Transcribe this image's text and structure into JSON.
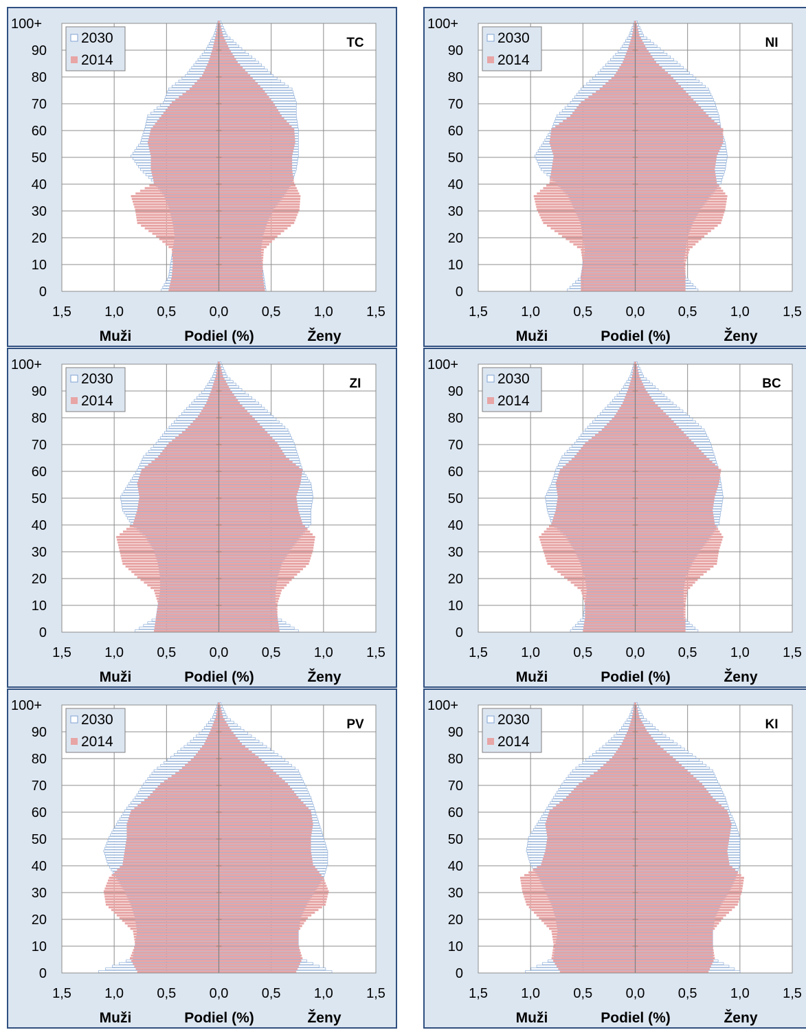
{
  "shared": {
    "y_ticks": [
      "0",
      "10",
      "20",
      "30",
      "40",
      "50",
      "60",
      "70",
      "80",
      "90",
      "100+"
    ],
    "x_ticks": [
      "1,5",
      "1,0",
      "0,5",
      "0,0",
      "0,5",
      "1,0",
      "1,5"
    ],
    "men_label": "Muži",
    "axis_label": "Podiel (%)",
    "women_label": "Ženy",
    "legend": [
      "2030",
      "2014"
    ],
    "colors": {
      "s2030_stroke": "#7fa3d3",
      "s2030_fill": "#ffffff",
      "s2014_fill": "#e8a5a5",
      "panel_bg": "#dce6f1",
      "plot_bg": "#ffffff",
      "frame": "#2f4f7f",
      "grid": "#8c8c8c"
    }
  },
  "chart_data": [
    {
      "type": "bar",
      "region": "TC",
      "orientation": "horizontal",
      "x_unit": "%",
      "xlim": [
        -1.5,
        1.5
      ],
      "ylim": [
        0,
        100
      ],
      "ages": [
        0,
        5,
        10,
        15,
        20,
        25,
        30,
        35,
        40,
        45,
        50,
        55,
        60,
        65,
        70,
        75,
        80,
        85,
        90,
        95,
        100
      ],
      "series": [
        {
          "name": "2030",
          "men": [
            0.55,
            0.48,
            0.46,
            0.44,
            0.42,
            0.44,
            0.47,
            0.52,
            0.62,
            0.75,
            0.84,
            0.75,
            0.71,
            0.68,
            0.53,
            0.48,
            0.32,
            0.22,
            0.12,
            0.05,
            0.01
          ],
          "women": [
            0.45,
            0.43,
            0.41,
            0.4,
            0.42,
            0.46,
            0.52,
            0.62,
            0.7,
            0.74,
            0.76,
            0.76,
            0.76,
            0.74,
            0.74,
            0.7,
            0.52,
            0.38,
            0.22,
            0.08,
            0.02
          ]
        },
        {
          "name": "2014",
          "men": [
            0.48,
            0.45,
            0.44,
            0.45,
            0.6,
            0.78,
            0.8,
            0.84,
            0.62,
            0.65,
            0.65,
            0.68,
            0.65,
            0.55,
            0.45,
            0.28,
            0.16,
            0.1,
            0.06,
            0.03,
            0.01
          ],
          "women": [
            0.44,
            0.42,
            0.42,
            0.43,
            0.56,
            0.72,
            0.77,
            0.78,
            0.72,
            0.7,
            0.7,
            0.73,
            0.72,
            0.6,
            0.52,
            0.42,
            0.3,
            0.18,
            0.1,
            0.04,
            0.01
          ]
        }
      ]
    },
    {
      "type": "bar",
      "region": "NI",
      "orientation": "horizontal",
      "x_unit": "%",
      "xlim": [
        -1.5,
        1.5
      ],
      "ylim": [
        0,
        100
      ],
      "ages": [
        0,
        5,
        10,
        15,
        20,
        25,
        30,
        35,
        40,
        45,
        50,
        55,
        60,
        65,
        70,
        75,
        80,
        85,
        90,
        95,
        100
      ],
      "series": [
        {
          "name": "2030",
          "men": [
            0.65,
            0.52,
            0.5,
            0.48,
            0.5,
            0.52,
            0.58,
            0.64,
            0.76,
            0.9,
            0.96,
            0.88,
            0.8,
            0.75,
            0.62,
            0.52,
            0.38,
            0.26,
            0.14,
            0.06,
            0.01
          ],
          "women": [
            0.6,
            0.48,
            0.46,
            0.48,
            0.5,
            0.55,
            0.62,
            0.72,
            0.82,
            0.86,
            0.88,
            0.86,
            0.82,
            0.8,
            0.76,
            0.7,
            0.55,
            0.4,
            0.24,
            0.08,
            0.02
          ]
        },
        {
          "name": "2014",
          "men": [
            0.52,
            0.52,
            0.5,
            0.52,
            0.7,
            0.88,
            0.94,
            0.97,
            0.82,
            0.8,
            0.78,
            0.82,
            0.8,
            0.62,
            0.52,
            0.34,
            0.2,
            0.12,
            0.07,
            0.03,
            0.01
          ],
          "women": [
            0.48,
            0.48,
            0.48,
            0.52,
            0.66,
            0.82,
            0.86,
            0.88,
            0.78,
            0.76,
            0.78,
            0.84,
            0.84,
            0.7,
            0.58,
            0.46,
            0.34,
            0.2,
            0.11,
            0.04,
            0.01
          ]
        }
      ]
    },
    {
      "type": "bar",
      "region": "ZI",
      "orientation": "horizontal",
      "x_unit": "%",
      "xlim": [
        -1.5,
        1.5
      ],
      "ylim": [
        0,
        100
      ],
      "ages": [
        0,
        5,
        10,
        15,
        20,
        25,
        30,
        35,
        40,
        45,
        50,
        55,
        60,
        65,
        70,
        75,
        80,
        85,
        90,
        95,
        100
      ],
      "series": [
        {
          "name": "2030",
          "men": [
            0.8,
            0.6,
            0.58,
            0.56,
            0.56,
            0.58,
            0.62,
            0.7,
            0.84,
            0.92,
            0.94,
            0.86,
            0.78,
            0.72,
            0.6,
            0.5,
            0.38,
            0.26,
            0.14,
            0.06,
            0.01
          ],
          "women": [
            0.76,
            0.56,
            0.54,
            0.54,
            0.56,
            0.6,
            0.68,
            0.78,
            0.88,
            0.88,
            0.9,
            0.88,
            0.8,
            0.76,
            0.72,
            0.66,
            0.52,
            0.38,
            0.22,
            0.08,
            0.02
          ]
        },
        {
          "name": "2014",
          "men": [
            0.62,
            0.6,
            0.58,
            0.62,
            0.78,
            0.92,
            0.95,
            0.98,
            0.82,
            0.78,
            0.76,
            0.78,
            0.74,
            0.58,
            0.48,
            0.32,
            0.2,
            0.12,
            0.07,
            0.03,
            0.01
          ],
          "women": [
            0.58,
            0.56,
            0.56,
            0.6,
            0.72,
            0.86,
            0.9,
            0.92,
            0.8,
            0.76,
            0.74,
            0.78,
            0.8,
            0.64,
            0.56,
            0.44,
            0.32,
            0.2,
            0.11,
            0.04,
            0.01
          ]
        }
      ]
    },
    {
      "type": "bar",
      "region": "BC",
      "orientation": "horizontal",
      "x_unit": "%",
      "xlim": [
        -1.5,
        1.5
      ],
      "ylim": [
        0,
        100
      ],
      "ages": [
        0,
        5,
        10,
        15,
        20,
        25,
        30,
        35,
        40,
        45,
        50,
        55,
        60,
        65,
        70,
        75,
        80,
        85,
        90,
        95,
        100
      ],
      "series": [
        {
          "name": "2030",
          "men": [
            0.62,
            0.5,
            0.48,
            0.46,
            0.48,
            0.52,
            0.58,
            0.66,
            0.8,
            0.84,
            0.86,
            0.8,
            0.76,
            0.7,
            0.58,
            0.48,
            0.36,
            0.24,
            0.13,
            0.05,
            0.01
          ],
          "women": [
            0.6,
            0.46,
            0.46,
            0.46,
            0.48,
            0.54,
            0.62,
            0.72,
            0.8,
            0.82,
            0.84,
            0.82,
            0.8,
            0.76,
            0.72,
            0.66,
            0.52,
            0.36,
            0.22,
            0.08,
            0.02
          ]
        },
        {
          "name": "2014",
          "men": [
            0.5,
            0.48,
            0.48,
            0.52,
            0.68,
            0.84,
            0.88,
            0.92,
            0.8,
            0.76,
            0.74,
            0.76,
            0.72,
            0.58,
            0.48,
            0.32,
            0.2,
            0.12,
            0.07,
            0.03,
            0.01
          ],
          "women": [
            0.48,
            0.48,
            0.48,
            0.5,
            0.62,
            0.78,
            0.8,
            0.84,
            0.76,
            0.74,
            0.76,
            0.8,
            0.82,
            0.68,
            0.56,
            0.44,
            0.32,
            0.19,
            0.1,
            0.04,
            0.01
          ]
        }
      ]
    },
    {
      "type": "bar",
      "region": "PV",
      "orientation": "horizontal",
      "x_unit": "%",
      "xlim": [
        -1.5,
        1.5
      ],
      "ylim": [
        0,
        100
      ],
      "ages": [
        0,
        5,
        10,
        15,
        20,
        25,
        30,
        35,
        40,
        45,
        50,
        55,
        60,
        65,
        70,
        75,
        80,
        85,
        90,
        95,
        100
      ],
      "series": [
        {
          "name": "2030",
          "men": [
            1.15,
            0.82,
            0.8,
            0.78,
            0.8,
            0.84,
            0.9,
            0.98,
            1.06,
            1.1,
            1.05,
            0.98,
            0.9,
            0.8,
            0.72,
            0.62,
            0.46,
            0.3,
            0.16,
            0.06,
            0.01
          ],
          "women": [
            1.08,
            0.78,
            0.76,
            0.76,
            0.78,
            0.84,
            0.92,
            1.0,
            1.04,
            1.04,
            1.0,
            0.96,
            0.92,
            0.88,
            0.82,
            0.76,
            0.6,
            0.42,
            0.24,
            0.08,
            0.02
          ]
        },
        {
          "name": "2014",
          "men": [
            0.78,
            0.85,
            0.8,
            0.82,
            0.95,
            1.08,
            1.1,
            1.05,
            0.92,
            0.9,
            0.88,
            0.88,
            0.84,
            0.68,
            0.56,
            0.38,
            0.24,
            0.14,
            0.08,
            0.03,
            0.01
          ],
          "women": [
            0.74,
            0.8,
            0.76,
            0.76,
            0.85,
            1.02,
            1.05,
            1.0,
            0.9,
            0.88,
            0.88,
            0.9,
            0.88,
            0.76,
            0.66,
            0.52,
            0.38,
            0.22,
            0.12,
            0.04,
            0.01
          ]
        }
      ]
    },
    {
      "type": "bar",
      "region": "KI",
      "orientation": "horizontal",
      "x_unit": "%",
      "xlim": [
        -1.5,
        1.5
      ],
      "ylim": [
        0,
        100
      ],
      "ages": [
        0,
        5,
        10,
        15,
        20,
        25,
        30,
        35,
        40,
        45,
        50,
        55,
        60,
        65,
        70,
        75,
        80,
        85,
        90,
        95,
        100
      ],
      "series": [
        {
          "name": "2030",
          "men": [
            1.05,
            0.78,
            0.76,
            0.74,
            0.76,
            0.8,
            0.86,
            0.92,
            1.0,
            1.04,
            1.02,
            0.94,
            0.86,
            0.78,
            0.7,
            0.6,
            0.44,
            0.28,
            0.15,
            0.06,
            0.01
          ],
          "women": [
            1.0,
            0.74,
            0.74,
            0.74,
            0.76,
            0.82,
            0.9,
            0.96,
            1.0,
            1.0,
            1.0,
            0.96,
            0.9,
            0.86,
            0.8,
            0.74,
            0.58,
            0.4,
            0.22,
            0.08,
            0.02
          ]
        },
        {
          "name": "2014",
          "men": [
            0.72,
            0.8,
            0.78,
            0.8,
            0.92,
            1.04,
            1.08,
            1.1,
            0.9,
            0.86,
            0.84,
            0.86,
            0.82,
            0.66,
            0.54,
            0.36,
            0.22,
            0.13,
            0.07,
            0.03,
            0.01
          ],
          "women": [
            0.7,
            0.76,
            0.74,
            0.74,
            0.84,
            0.98,
            1.02,
            1.04,
            0.9,
            0.88,
            0.9,
            0.92,
            0.88,
            0.74,
            0.64,
            0.5,
            0.36,
            0.21,
            0.11,
            0.04,
            0.01
          ]
        }
      ]
    }
  ]
}
